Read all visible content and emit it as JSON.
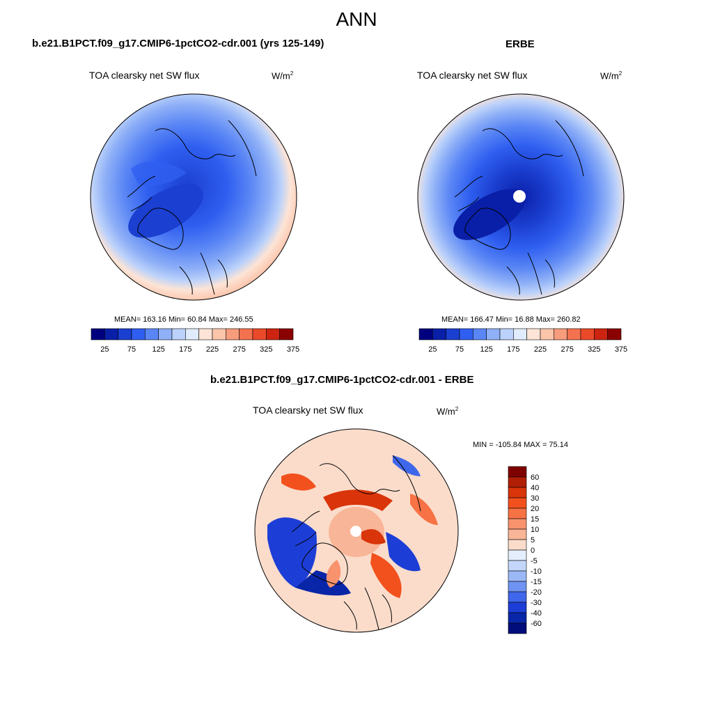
{
  "figure": {
    "title": "ANN",
    "model_label": "b.e21.B1PCT.f09_g17.CMIP6-1pctCO2-cdr.001 (yrs 125-149)",
    "obs_label": "ERBE",
    "diff_label": "b.e21.B1PCT.f09_g17.CMIP6-1pctCO2-cdr.001 - ERBE"
  },
  "panels": [
    {
      "id": "model",
      "variable": "TOA clearsky net SW flux",
      "units_base": "W/m",
      "units_exp": "2",
      "stats": "MEAN= 163.16  Min=  60.84  Max= 246.55",
      "has_pole_hole": false
    },
    {
      "id": "obs",
      "variable": "TOA clearsky net SW flux",
      "units_base": "W/m",
      "units_exp": "2",
      "stats": "MEAN= 166.47  Min=  16.88  Max= 260.82",
      "has_pole_hole": true
    },
    {
      "id": "diff",
      "variable": "TOA clearsky net SW flux",
      "units_base": "W/m",
      "units_exp": "2",
      "stats": "MIN = -105.84 MAX =  75.14",
      "has_pole_hole": true
    }
  ],
  "colorbars": {
    "abs": {
      "orientation": "horizontal",
      "labels": [
        "25",
        "75",
        "125",
        "175",
        "225",
        "275",
        "325",
        "375"
      ],
      "colors": [
        "#00007f",
        "#0a1fa8",
        "#1b3fd0",
        "#2f5ff0",
        "#5a86f5",
        "#8fb0f7",
        "#bcd2fa",
        "#e0ecfc",
        "#fde4d6",
        "#fbc5ac",
        "#f79c7c",
        "#f3724f",
        "#ea4a2a",
        "#cc2410",
        "#8b0000"
      ]
    },
    "diff": {
      "orientation": "vertical",
      "labels": [
        "60",
        "40",
        "30",
        "20",
        "15",
        "10",
        "5",
        "0",
        "-5",
        "-10",
        "-15",
        "-20",
        "-30",
        "-40",
        "-60"
      ],
      "colors": [
        "#7f0000",
        "#b01e06",
        "#d9340a",
        "#f2511e",
        "#f77245",
        "#f8936e",
        "#f9b597",
        "#fbdccb",
        "#e4eefc",
        "#c3d6fa",
        "#9bb8f6",
        "#6e93f2",
        "#3f67ec",
        "#1d3ed6",
        "#0926a8",
        "#000d7a"
      ]
    }
  },
  "land_color": "#cc2410"
}
